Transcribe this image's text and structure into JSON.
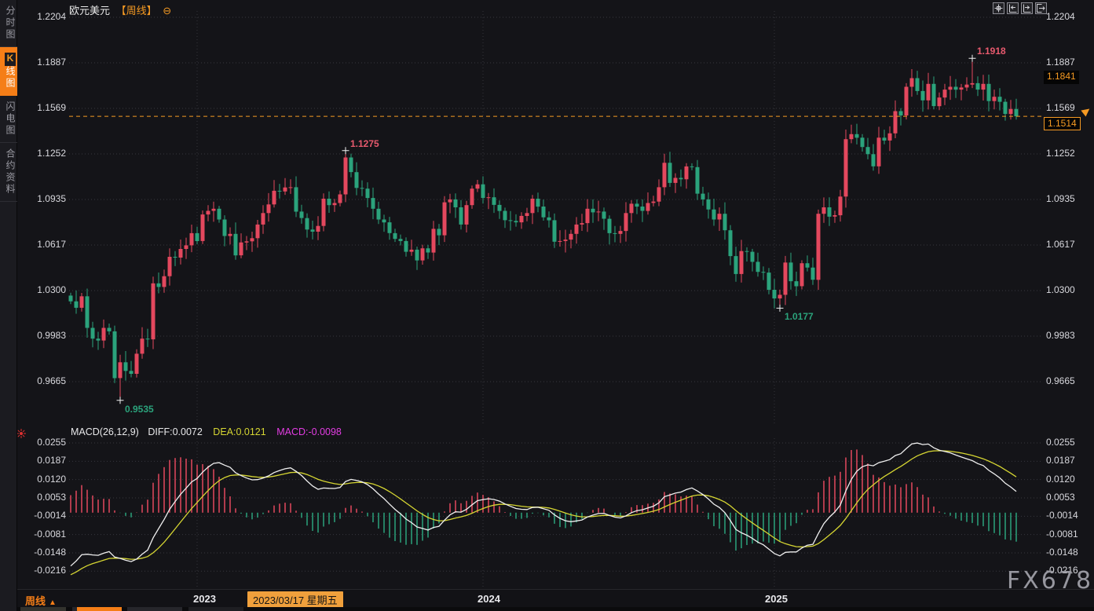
{
  "window": {
    "watermark": "FX678"
  },
  "sidebar": {
    "items": [
      {
        "label": "分时图",
        "active": false
      },
      {
        "label": "K线图",
        "k": "K",
        "rest": "线图",
        "active": true
      },
      {
        "label": "闪电图",
        "active": false
      },
      {
        "label": "合约资料",
        "active": false
      }
    ]
  },
  "header": {
    "symbol": "欧元美元",
    "period_tag": "【周线】",
    "collapse_icon": "⊖"
  },
  "toolbar": {
    "icons": [
      "crosshair",
      "pan-left",
      "pan-right",
      "exit-chart"
    ]
  },
  "main_axis": {
    "labels": [
      "1.2204",
      "1.1887",
      "1.1569",
      "1.1252",
      "1.0935",
      "1.0617",
      "1.0300",
      "0.9983",
      "0.9665"
    ]
  },
  "macd_axis": {
    "labels": [
      "0.0255",
      "0.0187",
      "0.0120",
      "0.0053",
      "-0.0014",
      "-0.0081",
      "-0.0148",
      "-0.0216"
    ]
  },
  "price_markers": {
    "ref_badge": "1.1841",
    "last_badge": "1.1514",
    "arrow": "▶"
  },
  "macd_header": {
    "name": "MACD(26,12,9)",
    "diff": "DIFF:0.0072",
    "dea": "DEA:0.0121",
    "macd": "MACD:-0.0098"
  },
  "bottom_bar": {
    "period": "周线",
    "arrow": "▲",
    "date_badge": "2023/03/17 星期五"
  },
  "chart_data": {
    "type": "candlestick+macd",
    "symbol": "欧元美元",
    "interval": "周线",
    "title": "欧元美元【周线】",
    "y_axis_main_ticks": [
      1.2204,
      1.1887,
      1.1569,
      1.1252,
      1.0935,
      1.0617,
      1.03,
      0.9983,
      0.9665
    ],
    "y_axis_macd_ticks": [
      0.0255,
      0.0187,
      0.012,
      0.0053,
      -0.0014,
      -0.0081,
      -0.0148,
      -0.0216
    ],
    "x_year_ticks": [
      "2023",
      "2024",
      "2025"
    ],
    "year_label_left": [
      246,
      608,
      974
    ],
    "year_start_indices": [
      23,
      75,
      128
    ],
    "last_price": 1.1514,
    "ref_price": 1.1841,
    "first_open": 1.0265,
    "weekly_closes": [
      1.0225,
      1.018,
      1.026,
      1.004,
      0.9965,
      0.9952,
      1.004,
      1.0016,
      0.969,
      0.98,
      0.974,
      0.972,
      0.986,
      0.9965,
      0.996,
      1.035,
      1.0325,
      1.04,
      1.0535,
      1.053,
      1.059,
      1.0615,
      1.07,
      1.0645,
      1.083,
      1.0855,
      1.087,
      1.0795,
      1.068,
      1.0695,
      1.0545,
      1.0635,
      1.0643,
      1.0665,
      1.076,
      1.084,
      1.09,
      1.0995,
      1.099,
      1.1018,
      1.102,
      1.085,
      1.0805,
      1.0725,
      1.071,
      1.075,
      1.094,
      1.0895,
      1.091,
      1.097,
      1.1227,
      1.1125,
      1.1015,
      1.101,
      1.0945,
      1.087,
      1.0795,
      1.0775,
      1.07,
      1.066,
      1.0645,
      1.057,
      1.0585,
      1.051,
      1.0594,
      1.0565,
      1.073,
      1.0685,
      1.0915,
      1.0935,
      1.088,
      1.076,
      1.0895,
      1.101,
      1.104,
      1.0945,
      1.095,
      1.0897,
      1.0855,
      1.079,
      1.0785,
      1.0775,
      1.082,
      1.084,
      1.094,
      1.0885,
      1.081,
      1.079,
      1.064,
      1.0645,
      1.0655,
      1.0695,
      1.076,
      1.077,
      1.087,
      1.0845,
      1.085,
      1.08,
      1.07,
      1.0695,
      1.0715,
      1.084,
      1.0905,
      1.0885,
      1.0855,
      1.091,
      1.092,
      1.102,
      1.119,
      1.105,
      1.1085,
      1.1075,
      1.1165,
      1.116,
      1.0975,
      1.0935,
      1.0865,
      1.0795,
      1.0835,
      1.072,
      1.054,
      1.0415,
      1.0575,
      1.057,
      1.05,
      1.043,
      1.0425,
      1.0305,
      1.0245,
      1.027,
      1.0495,
      1.0365,
      1.033,
      1.049,
      1.046,
      1.0375,
      1.0835,
      1.088,
      1.0815,
      1.0825,
      1.0955,
      1.1355,
      1.139,
      1.1365,
      1.13,
      1.125,
      1.1165,
      1.1365,
      1.1345,
      1.1395,
      1.155,
      1.152,
      1.172,
      1.178,
      1.169,
      1.1625,
      1.174,
      1.1585,
      1.1645,
      1.17,
      1.172,
      1.17,
      1.1715,
      1.1735,
      1.1745,
      1.17,
      1.174,
      1.162,
      1.165,
      1.1615,
      1.153,
      1.1565,
      1.1514
    ],
    "extreme_overrides": {
      "9": {
        "low": 0.9535
      },
      "50": {
        "high": 1.1275
      },
      "129": {
        "low": 1.0177
      },
      "164": {
        "high": 1.1918
      }
    },
    "annotations": [
      {
        "text": "0.9535",
        "week": 9,
        "price": 0.9535,
        "kind": "low"
      },
      {
        "text": "1.1275",
        "week": 50,
        "price": 1.1275,
        "kind": "high"
      },
      {
        "text": "1.0177",
        "week": 129,
        "price": 1.0177,
        "kind": "low"
      },
      {
        "text": "1.1918",
        "week": 164,
        "price": 1.1918,
        "kind": "high"
      }
    ],
    "macd_displayed": {
      "diff": 0.0072,
      "dea": 0.0121,
      "macd": -0.0098
    },
    "colors": {
      "up": "#e4485e",
      "down": "#2ba37c",
      "diff_line": "#efefef",
      "dea_line": "#d6d632",
      "hist_pos": "#e4485e",
      "hist_neg": "#2ba37c",
      "accent": "#f59a23",
      "grid": "#5a5a64"
    }
  }
}
